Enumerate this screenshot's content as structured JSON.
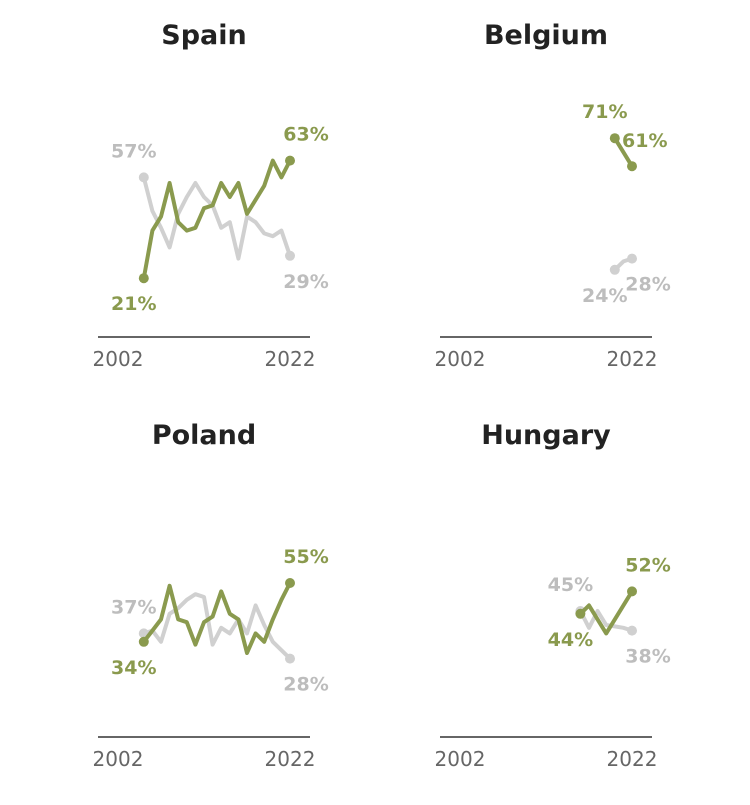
{
  "chart_data": [
    {
      "type": "line",
      "title": "Spain",
      "x_range": [
        2002,
        2022
      ],
      "x_tick_labels": [
        "2002",
        "2022"
      ],
      "ylim": [
        0,
        100
      ],
      "grid": false,
      "series": [
        {
          "name": "gray",
          "color": "#d0d0d0",
          "x": [
            2005,
            2006,
            2007,
            2008,
            2009,
            2010,
            2011,
            2012,
            2013,
            2014,
            2015,
            2016,
            2017,
            2018,
            2019,
            2020,
            2021,
            2022
          ],
          "values": [
            57,
            45,
            39,
            32,
            44,
            50,
            55,
            50,
            47,
            39,
            41,
            28,
            43,
            41,
            37,
            36,
            38,
            29
          ],
          "start_label": "57%",
          "end_label": "29%"
        },
        {
          "name": "green",
          "color": "#8a9a4e",
          "x": [
            2005,
            2006,
            2007,
            2008,
            2009,
            2010,
            2011,
            2012,
            2013,
            2014,
            2015,
            2016,
            2017,
            2018,
            2019,
            2020,
            2021,
            2022
          ],
          "values": [
            21,
            38,
            43,
            55,
            41,
            38,
            39,
            46,
            47,
            55,
            50,
            55,
            44,
            49,
            54,
            63,
            57,
            63
          ],
          "start_label": "21%",
          "end_label": "63%"
        }
      ]
    },
    {
      "type": "line",
      "title": "Belgium",
      "x_range": [
        2002,
        2022
      ],
      "x_tick_labels": [
        "2002",
        "2022"
      ],
      "ylim": [
        0,
        100
      ],
      "grid": false,
      "series": [
        {
          "name": "gray",
          "color": "#d0d0d0",
          "x": [
            2020,
            2021,
            2022
          ],
          "values": [
            24,
            27,
            28
          ],
          "start_label": "24%",
          "end_label": "28%"
        },
        {
          "name": "green",
          "color": "#8a9a4e",
          "x": [
            2020,
            2022
          ],
          "values": [
            71,
            61
          ],
          "start_label": "71%",
          "end_label": "61%"
        }
      ]
    },
    {
      "type": "line",
      "title": "Poland",
      "x_range": [
        2002,
        2022
      ],
      "x_tick_labels": [
        "2002",
        "2022"
      ],
      "ylim": [
        0,
        100
      ],
      "grid": false,
      "series": [
        {
          "name": "gray",
          "color": "#d0d0d0",
          "x": [
            2005,
            2006,
            2007,
            2008,
            2009,
            2010,
            2011,
            2012,
            2013,
            2014,
            2015,
            2016,
            2017,
            2018,
            2019,
            2020,
            2021,
            2022
          ],
          "values": [
            37,
            38,
            34,
            44,
            46,
            49,
            51,
            50,
            33,
            39,
            37,
            42,
            37,
            47,
            40,
            34,
            31,
            28
          ],
          "start_label": "37%",
          "end_label": "28%"
        },
        {
          "name": "green",
          "color": "#8a9a4e",
          "x": [
            2005,
            2006,
            2007,
            2008,
            2009,
            2010,
            2011,
            2012,
            2013,
            2014,
            2015,
            2016,
            2017,
            2018,
            2019,
            2020,
            2021,
            2022
          ],
          "values": [
            34,
            38,
            42,
            54,
            42,
            41,
            33,
            41,
            43,
            52,
            44,
            42,
            30,
            37,
            34,
            42,
            49,
            55
          ],
          "start_label": "34%",
          "end_label": "55%"
        }
      ]
    },
    {
      "type": "line",
      "title": "Hungary",
      "x_range": [
        2002,
        2022
      ],
      "x_tick_labels": [
        "2002",
        "2022"
      ],
      "ylim": [
        0,
        100
      ],
      "grid": false,
      "series": [
        {
          "name": "gray",
          "color": "#d0d0d0",
          "x": [
            2016,
            2017,
            2018,
            2019,
            2020,
            2021,
            2022
          ],
          "values": [
            45,
            39,
            45,
            40,
            39.5,
            39,
            38
          ],
          "start_label": "45%",
          "end_label": "38%"
        },
        {
          "name": "green",
          "color": "#8a9a4e",
          "x": [
            2016,
            2017,
            2018,
            2019,
            2020,
            2021,
            2022
          ],
          "values": [
            44,
            47,
            42,
            37,
            42,
            47,
            52
          ],
          "start_label": "44%",
          "end_label": "52%"
        }
      ]
    }
  ]
}
